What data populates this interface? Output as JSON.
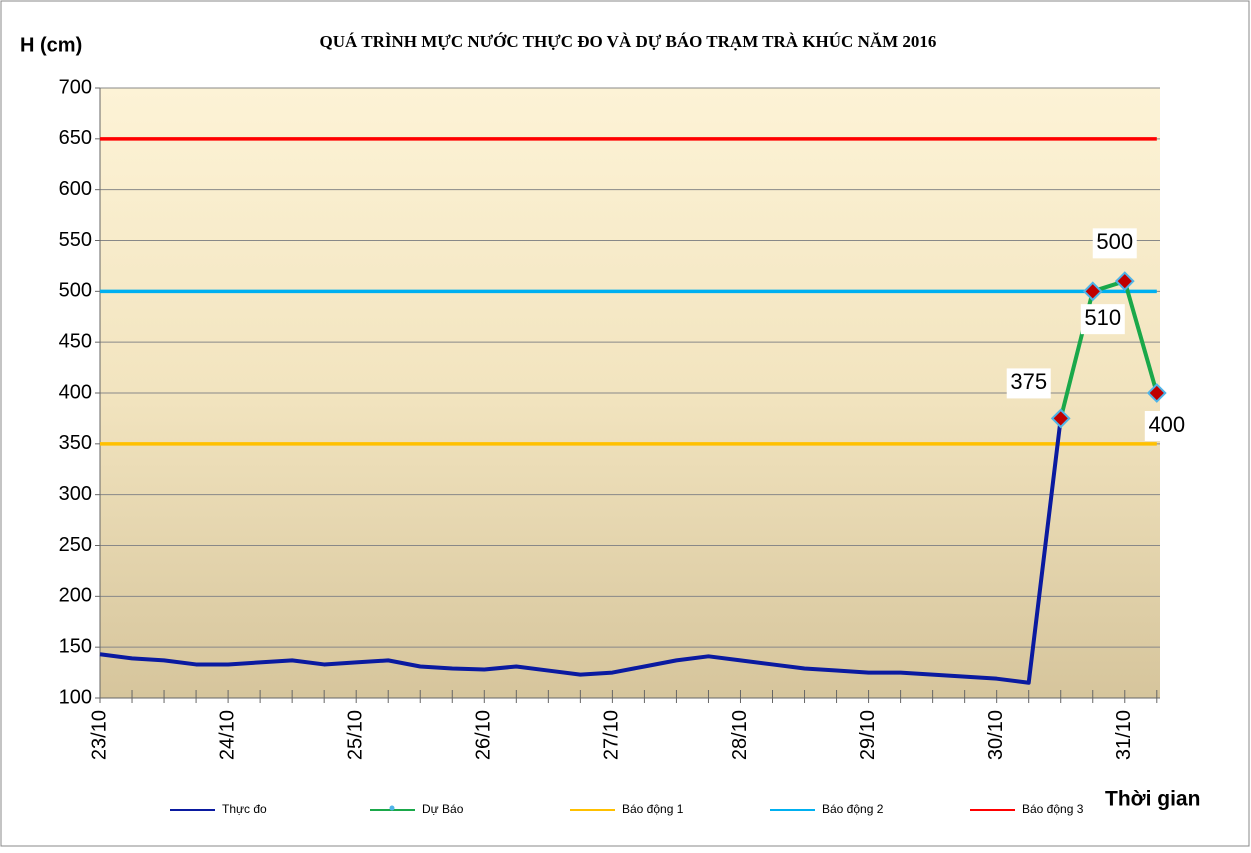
{
  "chart_data": {
    "type": "line",
    "title": "QUÁ TRÌNH MỰC NƯỚC THỰC ĐO VÀ DỰ BÁO TRẠM TRÀ KHÚC NĂM 2016",
    "y_label": "H (cm)",
    "x_label": "Thời gian",
    "categories": [
      "23/10",
      null,
      null,
      null,
      "24/10",
      null,
      null,
      null,
      "25/10",
      null,
      null,
      null,
      "26/10",
      null,
      null,
      null,
      "27/10",
      null,
      null,
      null,
      "28/10",
      null,
      null,
      null,
      "29/10",
      null,
      null,
      null,
      "30/10",
      null,
      null,
      null,
      "31/10",
      null
    ],
    "ylim": [
      100,
      700
    ],
    "yticks": [
      100,
      150,
      200,
      250,
      300,
      350,
      400,
      450,
      500,
      550,
      600,
      650,
      700
    ],
    "grid": true,
    "series": [
      {
        "name": "Thực đo",
        "color": "#0a1aa0",
        "values": [
          143,
          139,
          137,
          133,
          133,
          135,
          137,
          133,
          135,
          137,
          131,
          129,
          128,
          131,
          127,
          123,
          125,
          131,
          137,
          141,
          137,
          133,
          129,
          127,
          125,
          125,
          123,
          121,
          119,
          115,
          375,
          null,
          null,
          null
        ]
      },
      {
        "name": "Dự Báo",
        "color": "#1aa84a",
        "marker_color": "#c00000",
        "values": [
          null,
          null,
          null,
          null,
          null,
          null,
          null,
          null,
          null,
          null,
          null,
          null,
          null,
          null,
          null,
          null,
          null,
          null,
          null,
          null,
          null,
          null,
          null,
          null,
          null,
          null,
          null,
          null,
          null,
          null,
          375,
          500,
          510,
          400
        ]
      },
      {
        "name": "Báo động 1",
        "color": "#ffc000",
        "values": [
          350,
          350,
          350,
          350,
          350,
          350,
          350,
          350,
          350,
          350,
          350,
          350,
          350,
          350,
          350,
          350,
          350,
          350,
          350,
          350,
          350,
          350,
          350,
          350,
          350,
          350,
          350,
          350,
          350,
          350,
          350,
          350,
          350,
          350
        ]
      },
      {
        "name": "Báo động 2",
        "color": "#00b0f0",
        "values": [
          500,
          500,
          500,
          500,
          500,
          500,
          500,
          500,
          500,
          500,
          500,
          500,
          500,
          500,
          500,
          500,
          500,
          500,
          500,
          500,
          500,
          500,
          500,
          500,
          500,
          500,
          500,
          500,
          500,
          500,
          500,
          500,
          500,
          500
        ]
      },
      {
        "name": "Báo động 3",
        "color": "#ff0000",
        "values": [
          650,
          650,
          650,
          650,
          650,
          650,
          650,
          650,
          650,
          650,
          650,
          650,
          650,
          650,
          650,
          650,
          650,
          650,
          650,
          650,
          650,
          650,
          650,
          650,
          650,
          650,
          650,
          650,
          650,
          650,
          650,
          650,
          650,
          650
        ]
      }
    ]
  }
}
